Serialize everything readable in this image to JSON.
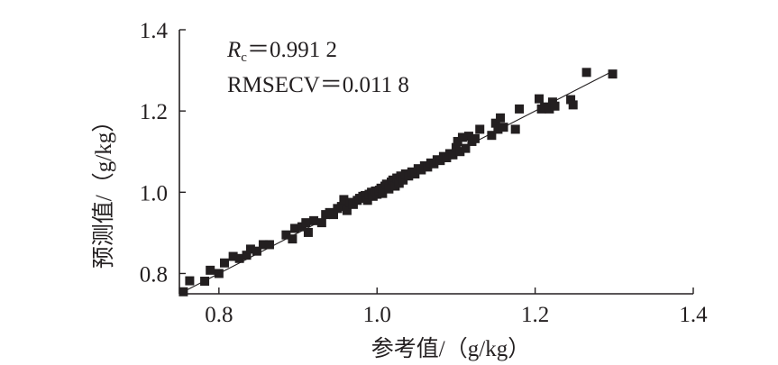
{
  "chart_data": {
    "type": "scatter",
    "title": "",
    "xlabel": "参考值/（g/kg）",
    "ylabel": "预测值/（g/kg）",
    "xlim": [
      0.75,
      1.4
    ],
    "ylim": [
      0.75,
      1.4
    ],
    "xticks": [
      "0.8",
      "1.0",
      "1.2",
      "1.4"
    ],
    "yticks": [
      "0.8",
      "1.0",
      "1.2",
      "1.4"
    ],
    "grid": false,
    "legend": "none",
    "annotations": {
      "rc_symbol": "R",
      "rc_subscript": "c",
      "rc_value": "＝0.991 2",
      "rmsecv": "RMSECV＝0.011 8"
    },
    "fit_line": {
      "x": [
        0.75,
        1.3
      ],
      "y": [
        0.75,
        1.3
      ]
    },
    "marker": "square",
    "color": "#231f20",
    "series": [
      {
        "name": "",
        "points": [
          [
            0.755,
            0.755
          ],
          [
            0.763,
            0.782
          ],
          [
            0.782,
            0.781
          ],
          [
            0.789,
            0.808
          ],
          [
            0.8,
            0.8
          ],
          [
            0.807,
            0.826
          ],
          [
            0.818,
            0.842
          ],
          [
            0.826,
            0.837
          ],
          [
            0.835,
            0.845
          ],
          [
            0.84,
            0.86
          ],
          [
            0.848,
            0.855
          ],
          [
            0.856,
            0.871
          ],
          [
            0.864,
            0.871
          ],
          [
            0.885,
            0.895
          ],
          [
            0.893,
            0.885
          ],
          [
            0.896,
            0.911
          ],
          [
            0.905,
            0.915
          ],
          [
            0.91,
            0.925
          ],
          [
            0.913,
            0.901
          ],
          [
            0.92,
            0.93
          ],
          [
            0.93,
            0.925
          ],
          [
            0.935,
            0.945
          ],
          [
            0.94,
            0.95
          ],
          [
            0.945,
            0.945
          ],
          [
            0.95,
            0.96
          ],
          [
            0.955,
            0.965
          ],
          [
            0.958,
            0.982
          ],
          [
            0.962,
            0.955
          ],
          [
            0.966,
            0.975
          ],
          [
            0.97,
            0.97
          ],
          [
            0.975,
            0.98
          ],
          [
            0.978,
            0.985
          ],
          [
            0.982,
            0.99
          ],
          [
            0.985,
            0.992
          ],
          [
            0.988,
            0.98
          ],
          [
            0.99,
            0.995
          ],
          [
            0.993,
            1.0
          ],
          [
            0.995,
            0.99
          ],
          [
            0.998,
            1.003
          ],
          [
            1.0,
            0.995
          ],
          [
            1.003,
            1.005
          ],
          [
            1.005,
            1.01
          ],
          [
            1.007,
            0.997
          ],
          [
            1.01,
            1.015
          ],
          [
            1.012,
            1.02
          ],
          [
            1.015,
            1.008
          ],
          [
            1.018,
            1.025
          ],
          [
            1.02,
            1.03
          ],
          [
            1.023,
            1.015
          ],
          [
            1.025,
            1.035
          ],
          [
            1.028,
            1.022
          ],
          [
            1.03,
            1.04
          ],
          [
            1.033,
            1.03
          ],
          [
            1.036,
            1.045
          ],
          [
            1.04,
            1.04
          ],
          [
            1.044,
            1.05
          ],
          [
            1.048,
            1.045
          ],
          [
            1.052,
            1.058
          ],
          [
            1.056,
            1.055
          ],
          [
            1.06,
            1.065
          ],
          [
            1.064,
            1.062
          ],
          [
            1.068,
            1.072
          ],
          [
            1.072,
            1.07
          ],
          [
            1.076,
            1.08
          ],
          [
            1.08,
            1.078
          ],
          [
            1.084,
            1.088
          ],
          [
            1.088,
            1.085
          ],
          [
            1.092,
            1.095
          ],
          [
            1.096,
            1.092
          ],
          [
            1.1,
            1.11
          ],
          [
            1.102,
            1.125
          ],
          [
            1.105,
            1.1
          ],
          [
            1.108,
            1.135
          ],
          [
            1.112,
            1.108
          ],
          [
            1.116,
            1.138
          ],
          [
            1.12,
            1.125
          ],
          [
            1.124,
            1.132
          ],
          [
            1.13,
            1.155
          ],
          [
            1.145,
            1.14
          ],
          [
            1.15,
            1.17
          ],
          [
            1.153,
            1.155
          ],
          [
            1.156,
            1.183
          ],
          [
            1.16,
            1.16
          ],
          [
            1.175,
            1.155
          ],
          [
            1.18,
            1.205
          ],
          [
            1.205,
            1.23
          ],
          [
            1.208,
            1.205
          ],
          [
            1.212,
            1.21
          ],
          [
            1.218,
            1.205
          ],
          [
            1.222,
            1.222
          ],
          [
            1.225,
            1.212
          ],
          [
            1.245,
            1.228
          ],
          [
            1.248,
            1.215
          ],
          [
            1.265,
            1.295
          ],
          [
            1.298,
            1.291
          ]
        ]
      }
    ]
  }
}
